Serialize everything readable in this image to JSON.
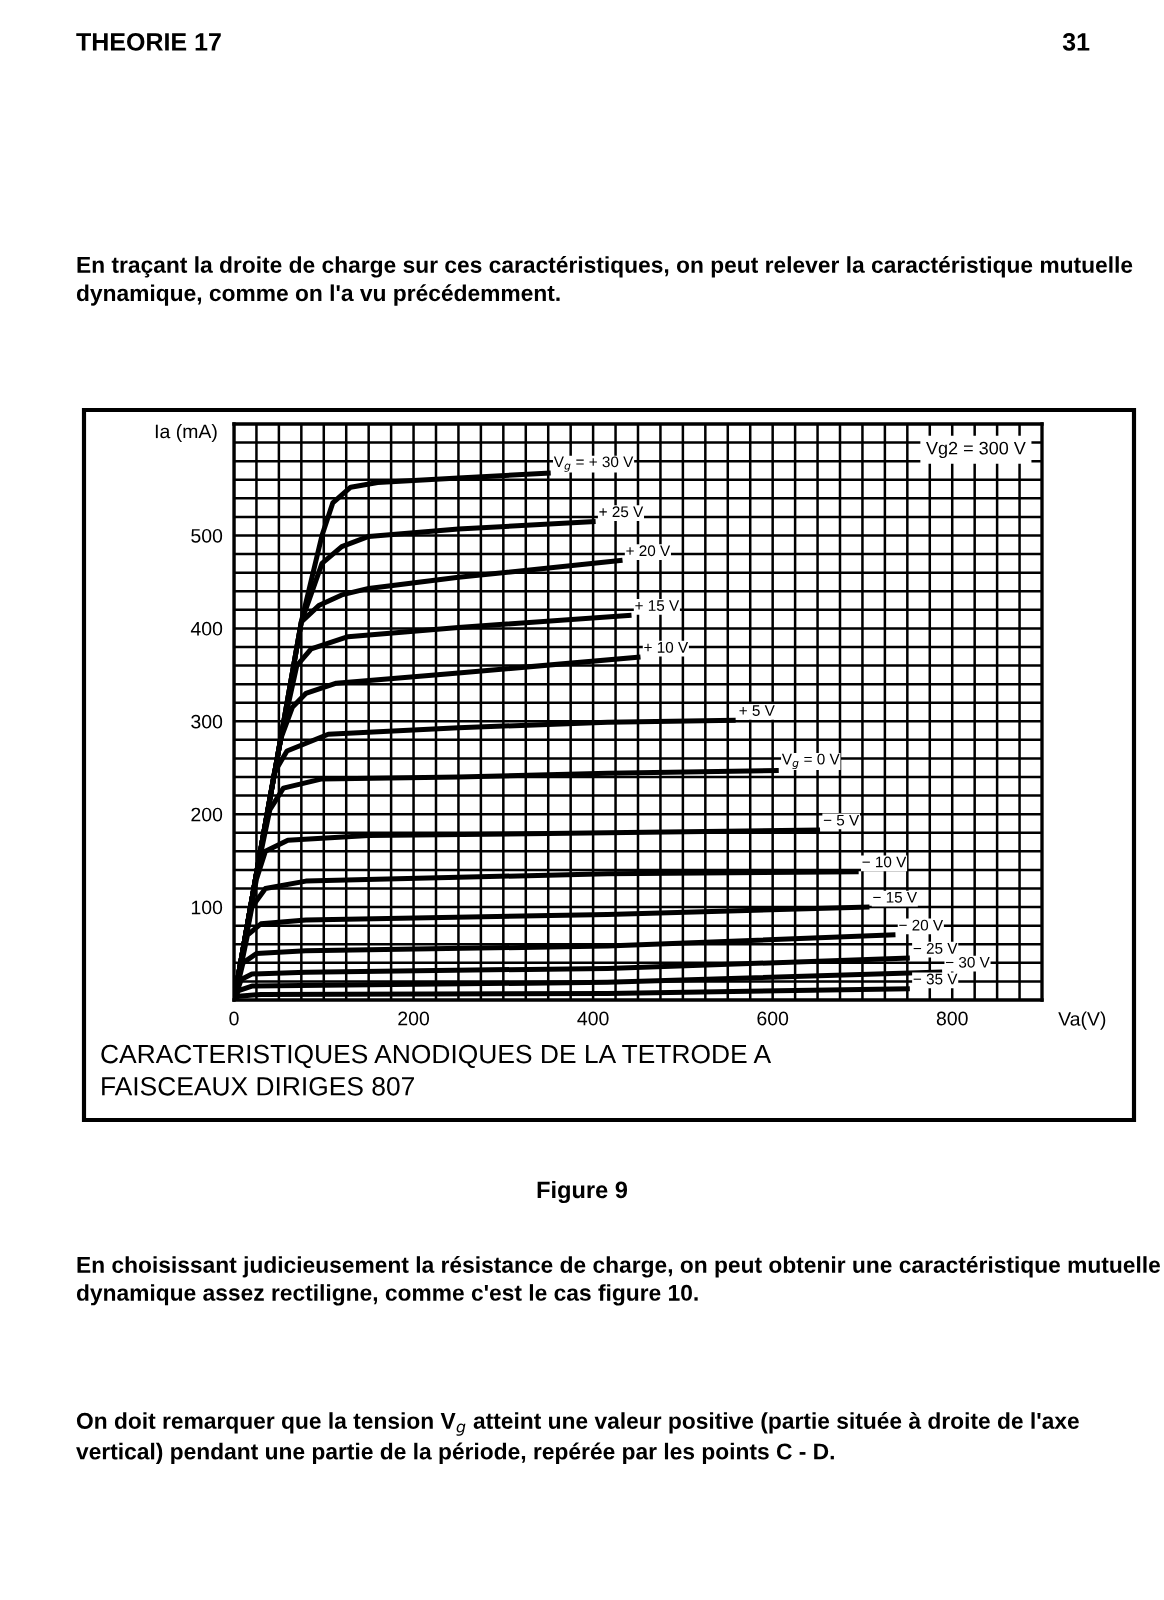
{
  "chart_data": {
    "type": "line",
    "xlabel": "Va(V)",
    "ylabel": "Ia (mA)",
    "xlim": [
      0,
      900
    ],
    "ylim": [
      0,
      620
    ],
    "xticks": [
      0,
      {
        "value": 25,
        "label": null
      },
      {
        "value": 50,
        "label": null
      },
      {
        "value": 75,
        "label": null
      },
      {
        "value": 100,
        "label": null
      },
      {
        "value": 125,
        "label": null
      },
      {
        "value": 150,
        "label": null
      },
      {
        "value": 175,
        "label": null
      },
      200,
      {
        "value": 225,
        "label": null
      },
      {
        "value": 250,
        "label": null
      },
      {
        "value": 275,
        "label": null
      },
      {
        "value": 300,
        "label": null
      },
      {
        "value": 325,
        "label": null
      },
      {
        "value": 350,
        "label": null
      },
      {
        "value": 375,
        "label": null
      },
      400,
      {
        "value": 425,
        "label": null
      },
      {
        "value": 450,
        "label": null
      },
      {
        "value": 475,
        "label": null
      },
      {
        "value": 500,
        "label": null
      },
      {
        "value": 525,
        "label": null
      },
      {
        "value": 550,
        "label": null
      },
      {
        "value": 575,
        "label": null
      },
      600,
      {
        "value": 625,
        "label": null
      },
      {
        "value": 650,
        "label": null
      },
      {
        "value": 675,
        "label": null
      },
      {
        "value": 700,
        "label": null
      },
      {
        "value": 725,
        "label": null
      },
      {
        "value": 750,
        "label": null
      },
      {
        "value": 775,
        "label": null
      },
      800,
      {
        "value": 825,
        "label": null
      },
      {
        "value": 850,
        "label": null
      },
      {
        "value": 875,
        "label": null
      }
    ],
    "yticks": [
      {
        "value": 20,
        "label": null
      },
      {
        "value": 40,
        "label": null
      },
      {
        "value": 60,
        "label": null
      },
      {
        "value": 80,
        "label": null
      },
      100,
      {
        "value": 120,
        "label": null
      },
      {
        "value": 140,
        "label": null
      },
      {
        "value": 160,
        "label": null
      },
      {
        "value": 180,
        "label": null
      },
      200,
      {
        "value": 220,
        "label": null
      },
      {
        "value": 240,
        "label": null
      },
      {
        "value": 260,
        "label": null
      },
      {
        "value": 280,
        "label": null
      },
      300,
      {
        "value": 320,
        "label": null
      },
      {
        "value": 340,
        "label": null
      },
      {
        "value": 360,
        "label": null
      },
      {
        "value": 380,
        "label": null
      },
      400,
      {
        "value": 420,
        "label": null
      },
      {
        "value": 440,
        "label": null
      },
      {
        "value": 460,
        "label": null
      },
      {
        "value": 480,
        "label": null
      },
      500,
      {
        "value": 520,
        "label": null
      },
      {
        "value": 540,
        "label": null
      },
      {
        "value": 560,
        "label": null
      },
      {
        "value": 580,
        "label": null
      },
      {
        "value": 600,
        "label": null
      }
    ],
    "grid": true,
    "legend": false,
    "marker": "none",
    "line_style": "solid",
    "series": [
      {
        "name": "V$_{g}$ = + 30 V",
        "color": "#000000",
        "x": [
          0,
          25,
          52,
          75,
          98,
          110,
          130,
          160,
          250,
          350
        ],
        "values": [
          0,
          136,
          281,
          407,
          500,
          535,
          552,
          557,
          562,
          567
        ]
      },
      {
        "name": "+ 25 V",
        "color": "#000000",
        "x": [
          0,
          25,
          52,
          75,
          98,
          120,
          150,
          250,
          400
        ],
        "values": [
          0,
          136,
          281,
          407,
          470,
          488,
          499,
          507,
          515
        ]
      },
      {
        "name": "+ 20 V",
        "color": "#000000",
        "x": [
          0,
          25,
          52,
          75,
          95,
          120,
          150,
          250,
          430
        ],
        "values": [
          0,
          136,
          281,
          407,
          425,
          436,
          443,
          455,
          473
        ]
      },
      {
        "name": "+ 15 V",
        "color": "#000000",
        "x": [
          0,
          25,
          52,
          70,
          86,
          127,
          250,
          440
        ],
        "values": [
          0,
          136,
          281,
          360,
          378,
          391,
          401,
          414
        ]
      },
      {
        "name": "+ 10 V",
        "color": "#000000",
        "x": [
          0,
          25,
          52,
          65,
          80,
          114,
          250,
          450
        ],
        "values": [
          0,
          136,
          281,
          315,
          330,
          341,
          352,
          369
        ]
      },
      {
        "name": "+ 5 V",
        "color": "#000000",
        "x": [
          0,
          25,
          45,
          59,
          105,
          250,
          416,
          556
        ],
        "values": [
          0,
          136,
          245,
          268,
          286,
          293,
          299,
          301
        ]
      },
      {
        "name": "V$_{g}$ = 0 V",
        "color": "#000000",
        "x": [
          0,
          25,
          40,
          55,
          98,
          250,
          416,
          604
        ],
        "values": [
          0,
          136,
          205,
          228,
          238,
          240,
          244,
          247
        ]
      },
      {
        "name": "− 5 V",
        "color": "#000000",
        "x": [
          0,
          25,
          35,
          60,
          150,
          416,
          650
        ],
        "values": [
          0,
          130,
          160,
          172,
          177,
          180,
          183
        ]
      },
      {
        "name": "− 10 V",
        "color": "#000000",
        "x": [
          0,
          20,
          35,
          80,
          250,
          416,
          693
        ],
        "values": [
          0,
          100,
          120,
          128,
          132,
          136,
          138
        ]
      },
      {
        "name": "− 15 V",
        "color": "#000000",
        "x": [
          0,
          15,
          30,
          80,
          416,
          705
        ],
        "values": [
          0,
          70,
          82,
          86,
          92,
          100
        ]
      },
      {
        "name": "− 20 V",
        "color": "#000000",
        "x": [
          0,
          10,
          25,
          80,
          416,
          734
        ],
        "values": [
          0,
          40,
          50,
          53,
          58,
          70
        ]
      },
      {
        "name": "− 25 V",
        "color": "#000000",
        "x": [
          0,
          8,
          20,
          80,
          416,
          750
        ],
        "values": [
          0,
          22,
          28,
          30,
          34,
          45
        ]
      },
      {
        "name": "− 30 V",
        "color": "#000000",
        "x": [
          0,
          5,
          20,
          416,
          786
        ],
        "values": [
          0,
          10,
          15,
          19,
          30
        ]
      },
      {
        "name": "− 35 V",
        "color": "#000000",
        "x": [
          0,
          5,
          30,
          416,
          750
        ],
        "values": [
          0,
          4,
          6,
          7,
          12
        ]
      }
    ],
    "annotations": [
      "THEORIE 17",
      "31",
      "En traçant la droite de charge sur ces caractéristiques, on peut relever la caractéristique mutuelle dynamique, comme on l'a vu précédemment.",
      "CARACTERISTIQUES ANODIQUES DE LA TETRODE A\nFAISCEAUX DIRIGES 807",
      "Figure 9",
      "En choisissant judicieusement la résistance de charge, on peut obtenir une caractéristique mutuelle dynamique assez rectiligne, comme c'est le cas figure 10.",
      "On doit remarquer que la tension V$_{g}$ atteint une valeur positive (partie située à droite de l'axe vertical) pendant une partie de la période, repérée par les points C - D.",
      "Vg2 = 300 V"
    ]
  }
}
